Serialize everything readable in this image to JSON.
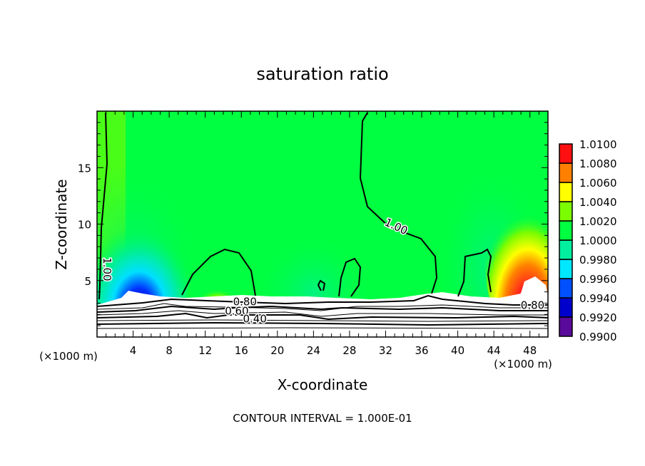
{
  "chart_data": {
    "type": "heatmap",
    "subtype": "filled-contour",
    "title": "saturation ratio",
    "xlabel": "X-coordinate",
    "ylabel": "Z-coordinate",
    "x_unit_label_left": "(×1000 m)",
    "x_unit_label_right": "(×1000 m)",
    "xlim": [
      0,
      50
    ],
    "ylim": [
      0,
      20
    ],
    "xticks": [
      4,
      8,
      12,
      16,
      20,
      24,
      28,
      32,
      36,
      40,
      44,
      48
    ],
    "yticks": [
      5,
      10,
      15
    ],
    "footer": "CONTOUR INTERVAL = 1.000E-01",
    "colorbar": {
      "levels": [
        "0.9900",
        "0.9920",
        "0.9940",
        "0.9960",
        "0.9980",
        "1.0000",
        "1.0020",
        "1.0040",
        "1.0060",
        "1.0080",
        "1.0100"
      ],
      "colors": [
        "#5a0a9a",
        "#0000cc",
        "#0050ff",
        "#00e8ff",
        "#00f0a0",
        "#00ff40",
        "#7cfc00",
        "#ffff00",
        "#ff8000",
        "#ff1010",
        "#ff8080"
      ]
    },
    "contour_labels": [
      {
        "text": "1.00",
        "x": 33,
        "y": 9.5
      },
      {
        "text": "1.00",
        "x": 0.7,
        "y": 6
      },
      {
        "text": "0.80",
        "x": 16.4,
        "y": 2.8
      },
      {
        "text": "0.60",
        "x": 15.5,
        "y": 2.0
      },
      {
        "text": "0.40",
        "x": 17.5,
        "y": 1.3
      },
      {
        "text": "0.80",
        "x": 48.3,
        "y": 2.5
      }
    ]
  }
}
